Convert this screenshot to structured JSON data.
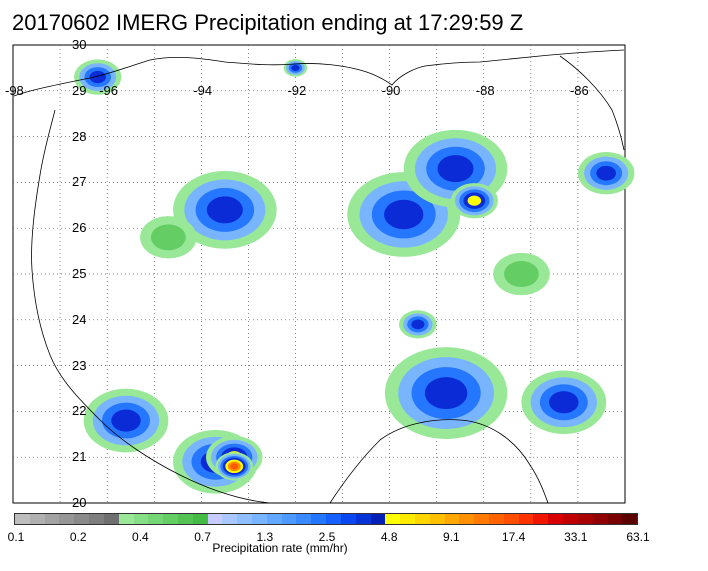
{
  "title": "20170602 IMERG Precipitation ending at 17:29:59 Z",
  "map": {
    "lat_labels": [
      "30",
      "29",
      "28",
      "27",
      "26",
      "25",
      "24",
      "23",
      "22",
      "21",
      "20"
    ],
    "lon_labels": [
      "-98",
      "-96",
      "-94",
      "-92",
      "-90",
      "-88",
      "-86"
    ],
    "extent": {
      "lon_min": -98,
      "lon_max": -85,
      "lat_min": 20,
      "lat_max": 30
    },
    "gridlines": "dotted",
    "colors": {
      "land_outline": "#000000",
      "grid": "#555555"
    }
  },
  "colorbar": {
    "label": "Precipitation rate (mm/hr)",
    "tick_labels": [
      "0.1",
      "0.2",
      "0.4",
      "0.7",
      "1.3",
      "2.5",
      "4.8",
      "9.1",
      "17.4",
      "33.1",
      "63.1"
    ],
    "colors": [
      "#bdbdbd",
      "#b0b0b0",
      "#a3a3a3",
      "#969696",
      "#8a8a8a",
      "#7e7e7e",
      "#6f6f6f",
      "#98e898",
      "#86df86",
      "#75d675",
      "#64cd64",
      "#53c453",
      "#44bb44",
      "#c7cbff",
      "#a9c8ff",
      "#8fbfff",
      "#79b4ff",
      "#63a8ff",
      "#4e9aff",
      "#3b89ff",
      "#2677ff",
      "#1560ff",
      "#0a47f0",
      "#0533d6",
      "#0220b8",
      "#ffff00",
      "#ffeb00",
      "#ffd700",
      "#ffc000",
      "#ffa800",
      "#ff9000",
      "#ff7a00",
      "#ff6400",
      "#ff4e00",
      "#ff3200",
      "#f01600",
      "#d80000",
      "#c00000",
      "#a80000",
      "#900000",
      "#7a0000",
      "#5c0000"
    ]
  },
  "precip_cells": [
    {
      "lon": -96.2,
      "lat": 29.3,
      "r": 0.5,
      "level": "blue"
    },
    {
      "lon": -92.0,
      "lat": 29.5,
      "r": 0.25,
      "level": "blue"
    },
    {
      "lon": -89.7,
      "lat": 26.3,
      "r": 1.2,
      "level": "blue"
    },
    {
      "lon": -88.6,
      "lat": 27.3,
      "r": 1.1,
      "level": "blue"
    },
    {
      "lon": -88.2,
      "lat": 26.6,
      "r": 0.5,
      "level": "yellow"
    },
    {
      "lon": -93.5,
      "lat": 26.4,
      "r": 1.1,
      "level": "blue"
    },
    {
      "lon": -94.7,
      "lat": 25.8,
      "r": 0.6,
      "level": "green"
    },
    {
      "lon": -88.8,
      "lat": 22.4,
      "r": 1.3,
      "level": "blue"
    },
    {
      "lon": -86.3,
      "lat": 22.2,
      "r": 0.9,
      "level": "blue"
    },
    {
      "lon": -89.4,
      "lat": 23.9,
      "r": 0.4,
      "level": "blue"
    },
    {
      "lon": -95.6,
      "lat": 21.8,
      "r": 0.9,
      "level": "blue"
    },
    {
      "lon": -93.7,
      "lat": 20.9,
      "r": 0.9,
      "level": "blue"
    },
    {
      "lon": -93.3,
      "lat": 21.0,
      "r": 0.6,
      "level": "yellow"
    },
    {
      "lon": -93.3,
      "lat": 20.8,
      "r": 0.4,
      "level": "orange"
    },
    {
      "lon": -87.2,
      "lat": 25.0,
      "r": 0.6,
      "level": "green"
    },
    {
      "lon": -85.4,
      "lat": 27.2,
      "r": 0.6,
      "level": "blue"
    }
  ]
}
